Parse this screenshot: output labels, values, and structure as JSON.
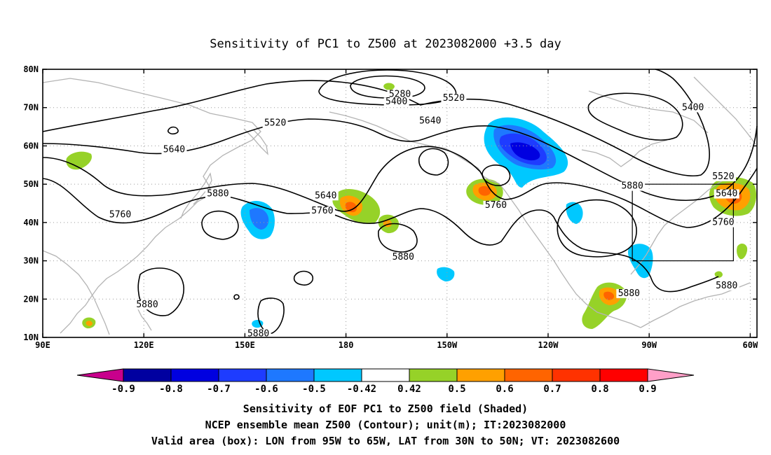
{
  "title": "Sensitivity of PC1 to Z500 at 2023082000 +3.5 day",
  "map": {
    "lon_range": [
      90,
      302
    ],
    "lat_range": [
      10,
      80
    ],
    "x_ticks": [
      "90E",
      "120E",
      "150E",
      "180",
      "150W",
      "120W",
      "90W",
      "60W"
    ],
    "y_ticks": [
      "10N",
      "20N",
      "30N",
      "40N",
      "50N",
      "60N",
      "70N",
      "80N"
    ],
    "grid": "dotted",
    "valid_box": {
      "lon": [
        265,
        295
      ],
      "lat": [
        30,
        50
      ]
    }
  },
  "contours": {
    "units": "m",
    "labels": [
      {
        "value": "5280",
        "lon": 196,
        "lat": 73
      },
      {
        "value": "5400",
        "lon": 195,
        "lat": 71
      },
      {
        "value": "5520",
        "lon": 212,
        "lat": 72
      },
      {
        "value": "5400",
        "lon": 283,
        "lat": 69.5
      },
      {
        "value": "5640",
        "lon": 205,
        "lat": 66
      },
      {
        "value": "5520",
        "lon": 159,
        "lat": 65.5
      },
      {
        "value": "5640",
        "lon": 129,
        "lat": 58.5
      },
      {
        "value": "5520",
        "lon": 292,
        "lat": 51.5
      },
      {
        "value": "5640",
        "lon": 293,
        "lat": 47
      },
      {
        "value": "5880",
        "lon": 142,
        "lat": 47
      },
      {
        "value": "5640",
        "lon": 174,
        "lat": 46.5
      },
      {
        "value": "5760",
        "lon": 173,
        "lat": 42.5
      },
      {
        "value": "5880",
        "lon": 265,
        "lat": 49
      },
      {
        "value": "5760",
        "lon": 224.5,
        "lat": 44
      },
      {
        "value": "5760",
        "lon": 113,
        "lat": 41.5
      },
      {
        "value": "5760",
        "lon": 292,
        "lat": 39.5
      },
      {
        "value": "5880",
        "lon": 197,
        "lat": 30.5
      },
      {
        "value": "5880",
        "lon": 264,
        "lat": 21
      },
      {
        "value": "5880",
        "lon": 293,
        "lat": 23
      },
      {
        "value": "5880",
        "lon": 121,
        "lat": 18
      },
      {
        "value": "5880",
        "lon": 154,
        "lat": 10.5
      }
    ]
  },
  "colorbar": {
    "colors": [
      "#c8008c",
      "#0000a0",
      "#0000e0",
      "#1e3cff",
      "#1e78ff",
      "#00c8ff",
      "#ffffff",
      "#96d228",
      "#ffa000",
      "#ff6400",
      "#ff3200",
      "#ff0000",
      "#ff9fc8"
    ],
    "labels": [
      "-0.9",
      "-0.8",
      "-0.7",
      "-0.6",
      "-0.5",
      "-0.42",
      "0.42",
      "0.5",
      "0.6",
      "0.7",
      "0.8",
      "0.9"
    ]
  },
  "captions": {
    "line1": "Sensitivity of EOF PC1 to Z500 field (Shaded)",
    "line2": "NCEP ensemble mean Z500 (Contour); unit(m); IT:2023082000",
    "line3": "Valid area (box): LON from 95W to 65W, LAT from 30N to 50N; VT: 2023082600"
  }
}
